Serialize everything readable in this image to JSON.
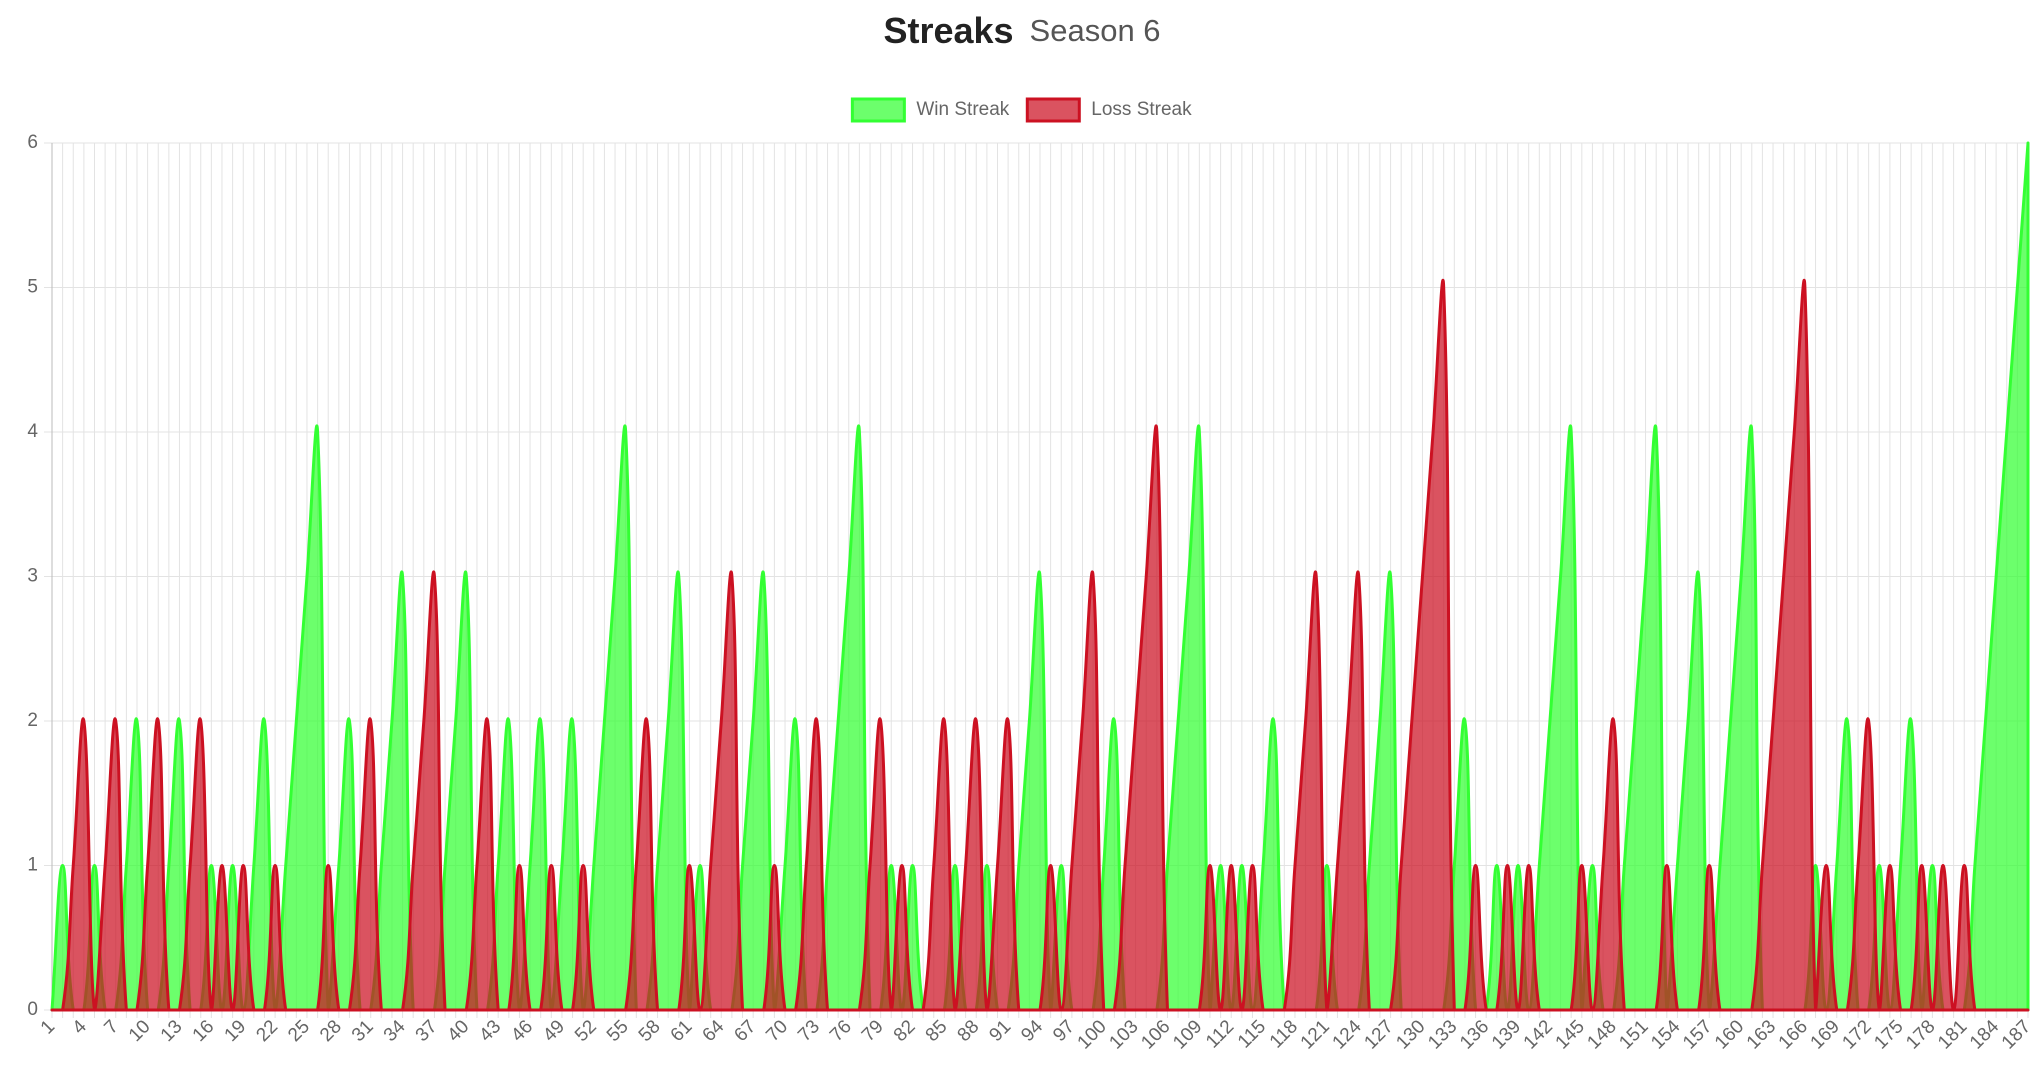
{
  "chart_data": {
    "type": "line",
    "title": "Streaks",
    "subtitle": "Season 6",
    "legend": "top",
    "grid": true,
    "categories": [
      1,
      null,
      null,
      4,
      null,
      null,
      7,
      null,
      null,
      10,
      null,
      null,
      13,
      null,
      null,
      16,
      null,
      null,
      19,
      null,
      null,
      22,
      null,
      null,
      25,
      null,
      null,
      28,
      null,
      null,
      31,
      null,
      null,
      34,
      null,
      null,
      37,
      null,
      null,
      40,
      null,
      null,
      43,
      null,
      null,
      46,
      null,
      null,
      49,
      null,
      null,
      52,
      null,
      null,
      55,
      null,
      null,
      58,
      null,
      null,
      61,
      null,
      null,
      64,
      null,
      null,
      67,
      null,
      null,
      70,
      null,
      null,
      73,
      null,
      null,
      76,
      null,
      null,
      79,
      null,
      null,
      82,
      null,
      null,
      85,
      null,
      null,
      88,
      null,
      null,
      91,
      null,
      null,
      94,
      null,
      null,
      97,
      null,
      null,
      100,
      null,
      null,
      103,
      null,
      null,
      106,
      null,
      null,
      109,
      null,
      null,
      112,
      null,
      null,
      115,
      null,
      null,
      118,
      null,
      null,
      121,
      null,
      null,
      124,
      null,
      null,
      127,
      null,
      null,
      130,
      null,
      null,
      133,
      null,
      null,
      136,
      null,
      null,
      139,
      null,
      null,
      142,
      null,
      null,
      145,
      null,
      null,
      148,
      null,
      null,
      151,
      null,
      null,
      154,
      null,
      null,
      157,
      null,
      null,
      160,
      null,
      null,
      163,
      null,
      null,
      166,
      null,
      null,
      169,
      null,
      null,
      172,
      null,
      null,
      175,
      null,
      null,
      178,
      null,
      null,
      181,
      null,
      null,
      184,
      null,
      null,
      187
    ],
    "series": [
      {
        "name": "Win Streak",
        "color": "#33ff33",
        "values": [
          0,
          1,
          0,
          0,
          1,
          0,
          0,
          1,
          2,
          0,
          0,
          1,
          2,
          0,
          0,
          1,
          0,
          1,
          0,
          1,
          2,
          0,
          1,
          2,
          3,
          4,
          0,
          1,
          2,
          0,
          0,
          1,
          2,
          3,
          0,
          0,
          0,
          1,
          2,
          3,
          0,
          0,
          1,
          2,
          0,
          1,
          2,
          0,
          1,
          2,
          0,
          1,
          2,
          3,
          4,
          0,
          0,
          1,
          2,
          3,
          0,
          1,
          0,
          0,
          0,
          1,
          2,
          3,
          0,
          1,
          2,
          0,
          0,
          1,
          2,
          3,
          4,
          0,
          0,
          1,
          0,
          1,
          0,
          0,
          0,
          1,
          0,
          0,
          1,
          0,
          0,
          1,
          2,
          3,
          0,
          1,
          0,
          0,
          0,
          1,
          2,
          0,
          0,
          0,
          0,
          1,
          2,
          3,
          4,
          0,
          1,
          0,
          1,
          0,
          1,
          2,
          0,
          0,
          0,
          0,
          1,
          0,
          0,
          0,
          1,
          2,
          3,
          0,
          0,
          0,
          0,
          0,
          1,
          2,
          0,
          0,
          1,
          0,
          1,
          0,
          1,
          2,
          3,
          4,
          0,
          1,
          0,
          0,
          1,
          2,
          3,
          4,
          0,
          1,
          2,
          3,
          0,
          1,
          2,
          3,
          4,
          0,
          0,
          0,
          0,
          0,
          1,
          0,
          1,
          2,
          0,
          0,
          1,
          0,
          1,
          2,
          0,
          1,
          0,
          0,
          0,
          1,
          2,
          3,
          4,
          5,
          6
        ]
      },
      {
        "name": "Loss Streak",
        "color": "#cc1122",
        "values": [
          0,
          0,
          1,
          2,
          0,
          1,
          2,
          0,
          0,
          1,
          2,
          0,
          0,
          1,
          2,
          0,
          1,
          0,
          1,
          0,
          0,
          1,
          0,
          0,
          0,
          0,
          1,
          0,
          0,
          1,
          2,
          0,
          0,
          0,
          1,
          2,
          3,
          0,
          0,
          0,
          1,
          2,
          0,
          0,
          1,
          0,
          0,
          1,
          0,
          0,
          1,
          0,
          0,
          0,
          0,
          1,
          2,
          0,
          0,
          0,
          1,
          0,
          1,
          2,
          3,
          0,
          0,
          0,
          1,
          0,
          0,
          1,
          2,
          0,
          0,
          0,
          0,
          1,
          2,
          0,
          1,
          0,
          0,
          1,
          2,
          0,
          1,
          2,
          0,
          1,
          2,
          0,
          0,
          0,
          1,
          0,
          1,
          2,
          3,
          0,
          0,
          1,
          2,
          3,
          4,
          0,
          0,
          0,
          0,
          1,
          0,
          1,
          0,
          1,
          0,
          0,
          0,
          1,
          2,
          3,
          0,
          1,
          2,
          3,
          0,
          0,
          0,
          1,
          2,
          3,
          4,
          5,
          0,
          0,
          1,
          0,
          0,
          1,
          0,
          1,
          0,
          0,
          0,
          0,
          1,
          0,
          1,
          2,
          0,
          0,
          0,
          0,
          1,
          0,
          0,
          0,
          1,
          0,
          0,
          0,
          0,
          1,
          2,
          3,
          4,
          5,
          0,
          1,
          0,
          0,
          1,
          2,
          0,
          1,
          0,
          0,
          1,
          0,
          1,
          0,
          1,
          0,
          0,
          0,
          0,
          0,
          0
        ]
      }
    ],
    "ylim": [
      0,
      6
    ],
    "yticks": [
      0,
      1,
      2,
      3,
      4,
      5,
      6
    ]
  }
}
